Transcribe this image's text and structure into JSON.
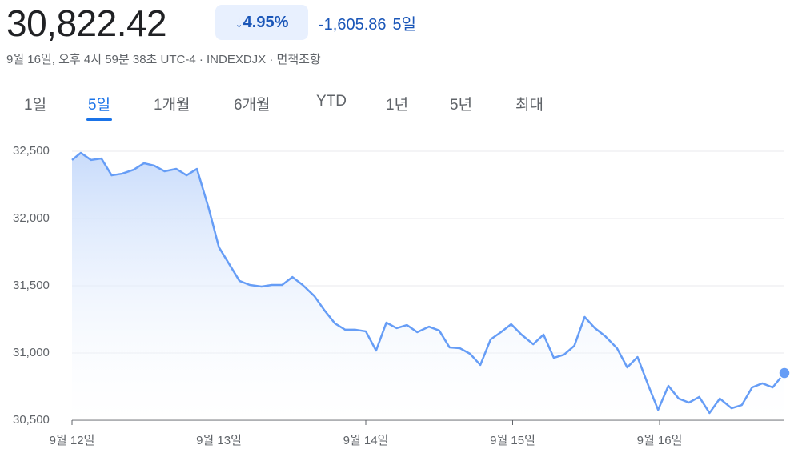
{
  "header": {
    "price": "30,822.42",
    "change_pct": "4.95%",
    "change": "-1,605.86",
    "period": "5일",
    "subtitle": "9월 16일, 오후 4시 59분 38초 UTC-4 · INDEXDJX · 면책조항"
  },
  "tabs": {
    "items": [
      "1일",
      "5일",
      "1개월",
      "6개월",
      "YTD",
      "1년",
      "5년",
      "최대"
    ],
    "selected": 1
  },
  "chart_data": {
    "type": "line",
    "color": "#669df6",
    "grid": true,
    "xlim": [
      0,
      4.85
    ],
    "xticks": [
      {
        "value": 0,
        "label": "9월 12일"
      },
      {
        "value": 1,
        "label": "9월 13일"
      },
      {
        "value": 2,
        "label": "9월 14일"
      },
      {
        "value": 3,
        "label": "9월 15일"
      },
      {
        "value": 4,
        "label": "9월 16일"
      }
    ],
    "ylim": [
      30500,
      32500
    ],
    "yticks": [
      {
        "value": 30500,
        "label": "30,500"
      },
      {
        "value": 31000,
        "label": "31,000"
      },
      {
        "value": 31500,
        "label": "31,500"
      },
      {
        "value": 32000,
        "label": "32,000"
      },
      {
        "value": 32500,
        "label": "32,500"
      }
    ],
    "x": [
      0,
      0.06,
      0.13,
      0.2,
      0.27,
      0.34,
      0.42,
      0.49,
      0.56,
      0.63,
      0.71,
      0.78,
      0.85,
      0.93,
      1.0,
      1.07,
      1.14,
      1.21,
      1.29,
      1.36,
      1.43,
      1.5,
      1.57,
      1.65,
      1.72,
      1.79,
      1.86,
      1.93,
      2.0,
      2.07,
      2.14,
      2.21,
      2.28,
      2.35,
      2.43,
      2.5,
      2.57,
      2.64,
      2.71,
      2.78,
      2.85,
      2.92,
      2.99,
      3.06,
      3.14,
      3.21,
      3.28,
      3.35,
      3.42,
      3.49,
      3.56,
      3.63,
      3.71,
      3.78,
      3.85,
      3.92,
      3.99,
      4.06,
      4.13,
      4.2,
      4.27,
      4.34,
      4.41,
      4.49,
      4.56,
      4.63,
      4.7,
      4.77,
      4.85
    ],
    "values": [
      32435,
      32488,
      32435,
      32446,
      32321,
      32333,
      32363,
      32411,
      32393,
      32351,
      32369,
      32321,
      32369,
      32077,
      31786,
      31661,
      31536,
      31506,
      31494,
      31506,
      31506,
      31565,
      31506,
      31423,
      31315,
      31220,
      31173,
      31173,
      31161,
      31018,
      31226,
      31185,
      31208,
      31155,
      31196,
      31167,
      31042,
      31036,
      30994,
      30911,
      31101,
      31155,
      31214,
      31137,
      31065,
      31137,
      30964,
      30988,
      31054,
      31268,
      31185,
      31125,
      31036,
      30893,
      30970,
      30768,
      30577,
      30756,
      30661,
      30631,
      30673,
      30554,
      30661,
      30589,
      30613,
      30744,
      30774,
      30744,
      30851
    ]
  }
}
